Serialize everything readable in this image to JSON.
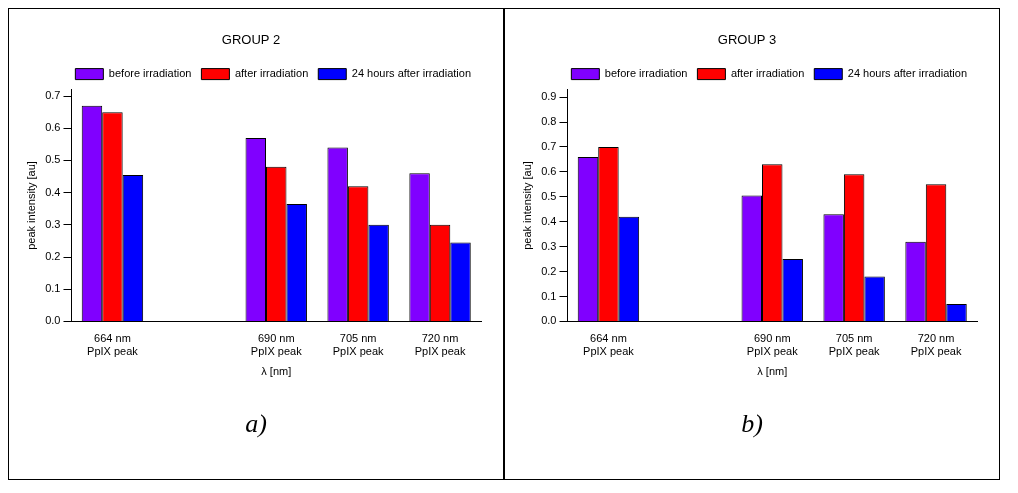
{
  "chart_data": [
    {
      "type": "bar",
      "title": "GROUP 2",
      "xlabel": "λ [nm]",
      "ylabel": "peak intensity [au]",
      "categories": [
        "664 nm\nPpIX peak",
        null,
        "690 nm\nPpIX peak",
        "705 nm\nPpIX peak",
        "720 nm\nPpIX peak"
      ],
      "series": [
        {
          "name": "before irradiation",
          "color": "#8000ff",
          "values": [
            0.67,
            null,
            0.57,
            0.54,
            0.46
          ]
        },
        {
          "name": "after irradiation",
          "color": "#ff0000",
          "values": [
            0.65,
            null,
            0.48,
            0.42,
            0.3
          ]
        },
        {
          "name": "24 hours after irradiation",
          "color": "#0000ff",
          "values": [
            0.455,
            null,
            0.365,
            0.3,
            0.245
          ]
        }
      ],
      "ylim": [
        0,
        0.72
      ],
      "yticks": [
        {
          "value": 0,
          "label": "0.0"
        },
        0.1,
        0.2,
        0.3,
        0.4,
        0.5,
        0.6,
        0.7
      ],
      "grid": false,
      "legend": "top right",
      "annotations": [
        "a)"
      ]
    },
    {
      "type": "bar",
      "title": "GROUP 3",
      "xlabel": "λ [nm]",
      "ylabel": "peak intensity [au]",
      "categories": [
        "664 nm\nPpIX peak",
        null,
        "690 nm\nPpIX peak",
        "705 nm\nPpIX peak",
        "720 nm\nPpIX peak"
      ],
      "series": [
        {
          "name": "before irradiation",
          "color": "#8000ff",
          "values": [
            0.66,
            null,
            0.505,
            0.43,
            0.32
          ]
        },
        {
          "name": "after irradiation",
          "color": "#ff0000",
          "values": [
            0.7,
            null,
            0.63,
            0.59,
            0.55
          ]
        },
        {
          "name": "24 hours after irradiation",
          "color": "#0000ff",
          "values": [
            0.42,
            null,
            0.25,
            0.18,
            0.07
          ]
        }
      ],
      "ylim": [
        0,
        0.93
      ],
      "yticks": [
        {
          "value": 0,
          "label": "0.0"
        },
        0.1,
        0.2,
        0.3,
        0.4,
        0.5,
        0.6,
        0.7,
        0.8,
        0.9
      ],
      "grid": false,
      "legend": "top right",
      "annotations": [
        "b)"
      ]
    }
  ]
}
